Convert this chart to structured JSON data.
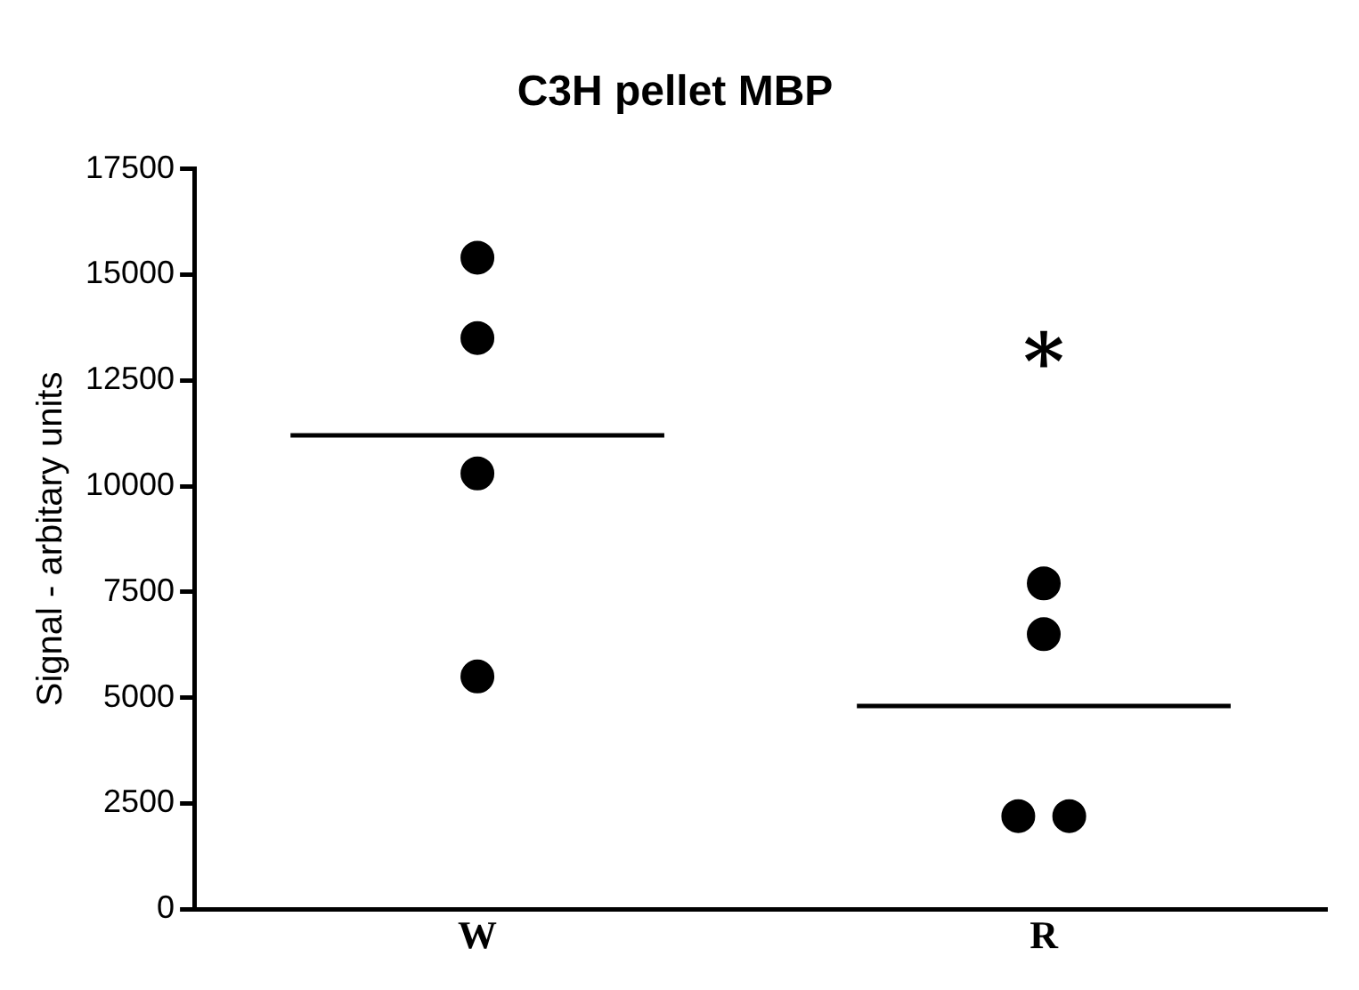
{
  "chart_data": {
    "type": "scatter",
    "title": "C3H pellet MBP",
    "ylabel": "Signal - arbitary units",
    "categories": [
      "W",
      "R"
    ],
    "ylim": [
      0,
      17500
    ],
    "yticks": [
      0,
      2500,
      5000,
      7500,
      10000,
      12500,
      15000,
      17500
    ],
    "grid": false,
    "legend": false,
    "marker": "circle",
    "series": [
      {
        "color": "#000000",
        "x": [
          "W",
          "W",
          "W",
          "W",
          "R",
          "R",
          "R",
          "R"
        ],
        "values": [
          15400,
          13500,
          10300,
          5500,
          7700,
          6500,
          2200,
          2200
        ]
      },
      {
        "type": "box",
        "color": "#000000",
        "boxes": [
          {
            "low": 11200,
            "q1": 11200,
            "median": 11200,
            "q3": 11200,
            "high": 11200
          },
          {
            "low": 4800,
            "q1": 4800,
            "median": 4800,
            "q3": 4800,
            "high": 4800
          }
        ]
      }
    ],
    "annotations": [
      "*"
    ]
  }
}
